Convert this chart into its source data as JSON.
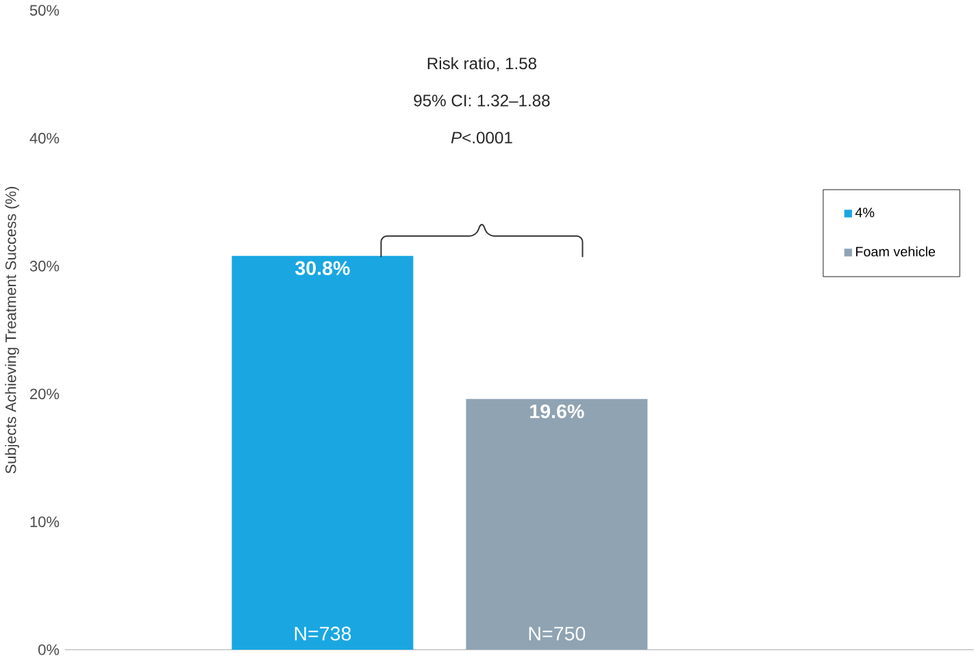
{
  "chart_data": {
    "type": "bar",
    "ylabel": "Subjects Achieving Treatment Success (%)",
    "categories": [
      null,
      null
    ],
    "series": [
      {
        "name": "4%",
        "color": "#1aa7e1",
        "values": [
          30.8,
          null
        ],
        "value_labels": [
          "30.8%",
          null
        ]
      },
      {
        "name": "Foam vehicle",
        "color": "#8fa3b3",
        "values": [
          null,
          19.6
        ],
        "value_labels": [
          null,
          "19.6%"
        ]
      }
    ],
    "annotations": [
      "Risk ratio, 1.58",
      "95% CI: 1.32–1.88",
      "*P*<.0001",
      "N=738",
      "N=750"
    ],
    "ylim": [
      0,
      50
    ],
    "yticks": [
      {
        "value": 0,
        "label": "0%"
      },
      {
        "value": 10,
        "label": "10%"
      },
      {
        "value": 20,
        "label": "20%"
      },
      {
        "value": 30,
        "label": "30%"
      },
      {
        "value": 40,
        "label": "40%"
      },
      {
        "value": 50,
        "label": "50%"
      }
    ],
    "legend": "right"
  }
}
